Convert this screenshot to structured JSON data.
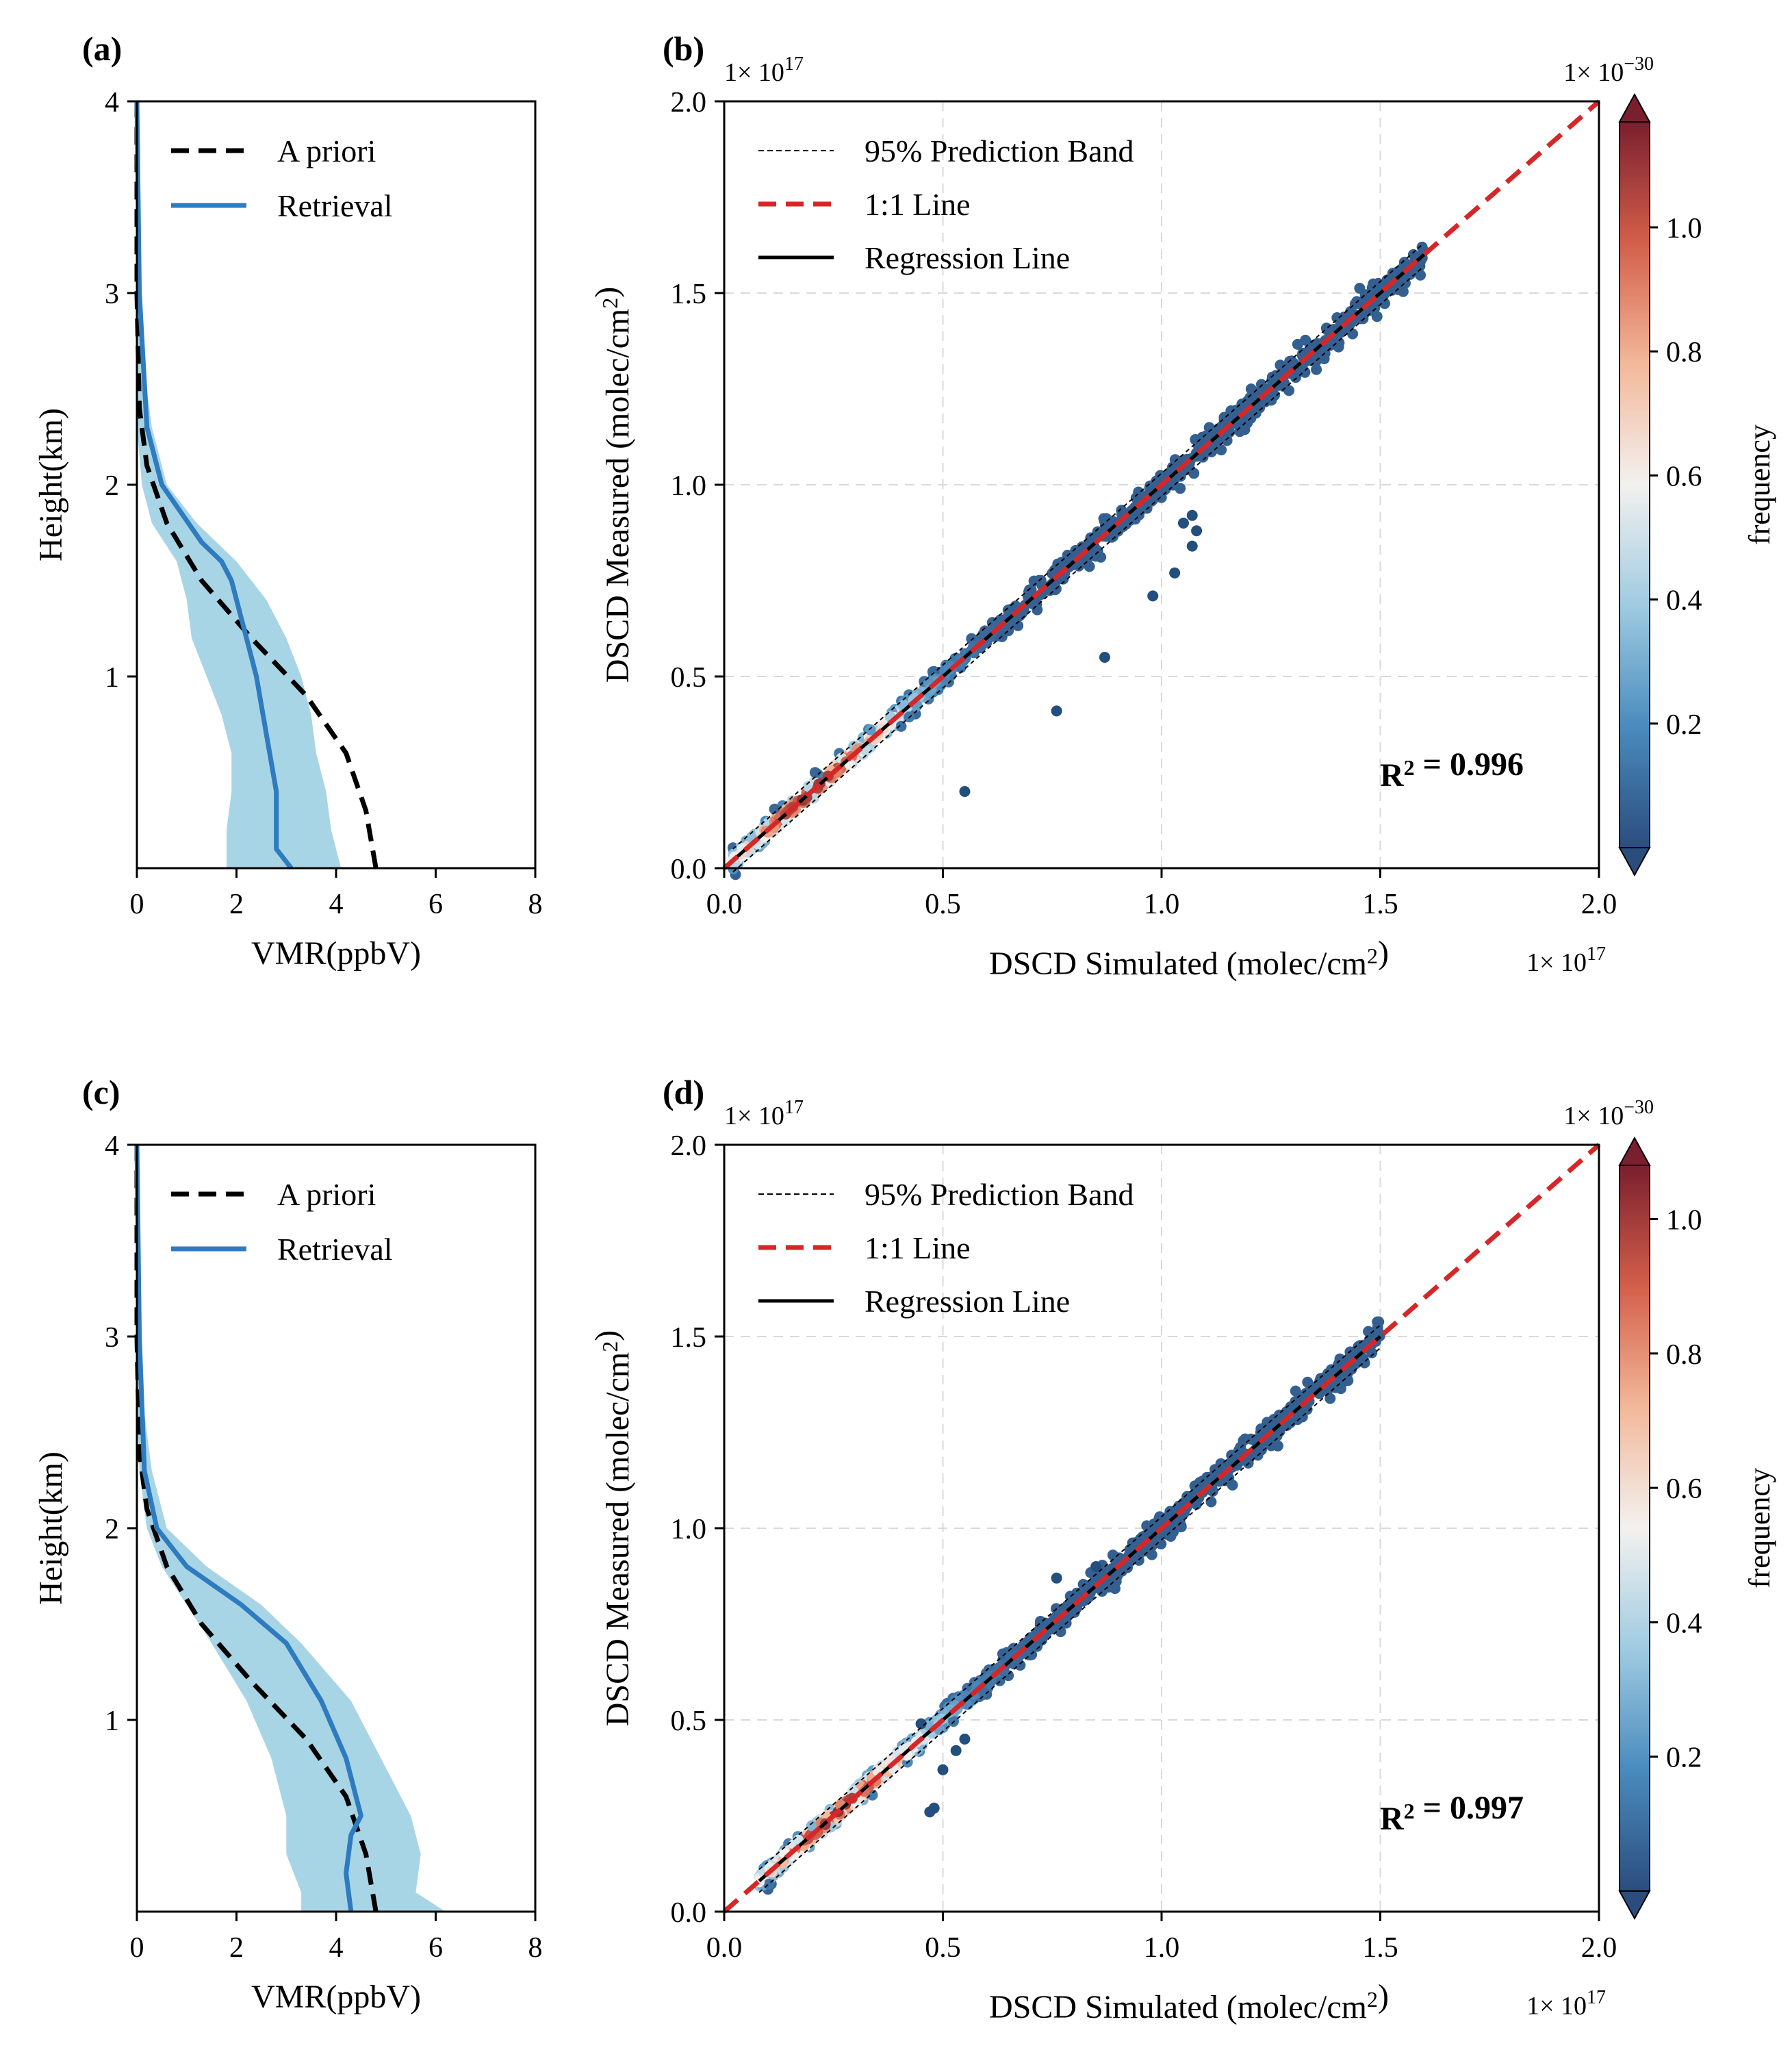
{
  "colors": {
    "apriori": "#000000",
    "retrieval": "#2f7bbf",
    "band_fill": "#a8d5e6",
    "one_to_one": "#d62728",
    "regression": "#000000",
    "scatter": "#234f7e",
    "colormap": [
      "#2b4d7e",
      "#4a8bbd",
      "#9fcbe1",
      "#f3f1ef",
      "#f3b89a",
      "#d35f4a",
      "#7a1f2e"
    ]
  },
  "chart_data": [
    {
      "panel": "(a)",
      "type": "line",
      "xlabel": "VMR(ppbV)",
      "ylabel": "Height(km)",
      "xlim": [
        0,
        8
      ],
      "ylim": [
        0,
        4
      ],
      "xticks": [
        "0",
        "2",
        "4",
        "6",
        "8"
      ],
      "yticks": [
        "1",
        "2",
        "3",
        "4"
      ],
      "legend": [
        "A priori",
        "Retrieval"
      ],
      "series": [
        {
          "name": "A priori",
          "style": "dashed",
          "x": [
            4.8,
            4.6,
            4.2,
            3.4,
            2.3,
            1.3,
            0.6,
            0.2,
            0.05,
            0.0,
            0.0
          ],
          "y": [
            0.0,
            0.3,
            0.6,
            0.9,
            1.2,
            1.5,
            1.8,
            2.1,
            2.4,
            3.0,
            4.0
          ]
        },
        {
          "name": "Retrieval",
          "style": "solid",
          "x": [
            3.1,
            2.8,
            2.8,
            2.6,
            2.4,
            2.1,
            1.9,
            1.7,
            1.3,
            0.5,
            0.2,
            0.05,
            0.0
          ],
          "y": [
            0.0,
            0.1,
            0.4,
            0.7,
            1.0,
            1.3,
            1.5,
            1.6,
            1.7,
            2.0,
            2.3,
            3.0,
            4.0
          ]
        }
      ],
      "band": {
        "y": [
          0.0,
          0.2,
          0.4,
          0.6,
          0.8,
          1.0,
          1.2,
          1.4,
          1.6,
          1.8,
          2.0,
          2.3,
          2.7,
          3.0,
          4.0
        ],
        "lower": [
          1.8,
          1.8,
          1.9,
          1.9,
          1.7,
          1.4,
          1.1,
          1.0,
          0.8,
          0.3,
          0.1,
          0.0,
          0.0,
          0.0,
          0.0
        ],
        "upper": [
          4.1,
          3.9,
          3.8,
          3.6,
          3.5,
          3.3,
          3.0,
          2.6,
          2.0,
          1.2,
          0.6,
          0.3,
          0.1,
          0.05,
          0.02
        ]
      }
    },
    {
      "panel": "(b)",
      "type": "scatter",
      "xlabel": "DSCD Simulated (molec/cm²)",
      "ylabel": "DSCD Measured (molec/cm²)",
      "xlim": [
        0,
        2.0
      ],
      "ylim": [
        0,
        2.0
      ],
      "xticks": [
        "0.0",
        "0.5",
        "1.0",
        "1.5",
        "2.0"
      ],
      "yticks": [
        "0.0",
        "0.5",
        "1.0",
        "1.5",
        "2.0"
      ],
      "x_scale": "1× 10¹⁷",
      "y_scale": "1× 10¹⁷",
      "legend": [
        "95% Prediction Band",
        "1:1 Line",
        "Regression Line"
      ],
      "r2": "R² = 0.996",
      "dense_range": [
        0.02,
        1.6
      ],
      "outliers": [
        [
          0.55,
          0.2
        ],
        [
          0.76,
          0.41
        ],
        [
          0.87,
          0.55
        ],
        [
          0.98,
          0.71
        ],
        [
          1.03,
          0.77
        ],
        [
          1.05,
          0.9
        ],
        [
          1.07,
          0.92
        ],
        [
          1.08,
          0.88
        ],
        [
          1.07,
          0.84
        ]
      ],
      "colorbar": {
        "label": "frequency",
        "scale": "1× 10⁻³⁰",
        "ticks": [
          "0.2",
          "0.4",
          "0.6",
          "0.8",
          "1.0"
        ],
        "range": [
          0,
          1.17
        ]
      }
    },
    {
      "panel": "(c)",
      "type": "line",
      "xlabel": "VMR(ppbV)",
      "ylabel": "Height(km)",
      "xlim": [
        0,
        8
      ],
      "ylim": [
        0,
        4
      ],
      "xticks": [
        "0",
        "2",
        "4",
        "6",
        "8"
      ],
      "yticks": [
        "1",
        "2",
        "3",
        "4"
      ],
      "legend": [
        "A priori",
        "Retrieval"
      ],
      "series": [
        {
          "name": "A priori",
          "style": "dashed",
          "x": [
            4.8,
            4.6,
            4.2,
            3.4,
            2.3,
            1.3,
            0.6,
            0.2,
            0.05,
            0.0,
            0.0
          ],
          "y": [
            0.0,
            0.3,
            0.6,
            0.9,
            1.2,
            1.5,
            1.8,
            2.1,
            2.4,
            3.0,
            4.0
          ]
        },
        {
          "name": "Retrieval",
          "style": "solid",
          "x": [
            4.3,
            4.2,
            4.3,
            4.5,
            4.2,
            3.7,
            3.0,
            2.1,
            1.0,
            0.4,
            0.15,
            0.05,
            0.0
          ],
          "y": [
            0.0,
            0.2,
            0.4,
            0.5,
            0.8,
            1.1,
            1.4,
            1.6,
            1.8,
            2.0,
            2.3,
            3.0,
            4.0
          ]
        }
      ],
      "band": {
        "y": [
          0.0,
          0.1,
          0.3,
          0.5,
          0.8,
          1.1,
          1.4,
          1.6,
          1.8,
          2.0,
          2.3,
          2.7,
          3.0,
          4.0
        ],
        "lower": [
          3.3,
          3.3,
          3.0,
          3.0,
          2.7,
          2.2,
          1.5,
          1.0,
          0.5,
          0.2,
          0.05,
          0.0,
          0.0,
          0.0
        ],
        "upper": [
          6.2,
          5.6,
          5.7,
          5.5,
          4.9,
          4.3,
          3.3,
          2.5,
          1.4,
          0.6,
          0.3,
          0.1,
          0.05,
          0.02
        ]
      }
    },
    {
      "panel": "(d)",
      "type": "scatter",
      "xlabel": "DSCD Simulated (molec/cm²)",
      "ylabel": "DSCD Measured (molec/cm²)",
      "xlim": [
        0,
        2.0
      ],
      "ylim": [
        0,
        2.0
      ],
      "xticks": [
        "0.0",
        "0.5",
        "1.0",
        "1.5",
        "2.0"
      ],
      "yticks": [
        "0.0",
        "0.5",
        "1.0",
        "1.5",
        "2.0"
      ],
      "x_scale": "1× 10¹⁷",
      "y_scale": "1× 10¹⁷",
      "legend": [
        "95% Prediction Band",
        "1:1 Line",
        "Regression Line"
      ],
      "r2": "R² = 0.997",
      "dense_range": [
        0.08,
        1.5
      ],
      "outliers": [
        [
          0.47,
          0.26
        ],
        [
          0.48,
          0.27
        ],
        [
          0.5,
          0.37
        ],
        [
          0.53,
          0.42
        ],
        [
          0.55,
          0.45
        ],
        [
          0.45,
          0.49
        ],
        [
          0.76,
          0.87
        ],
        [
          0.85,
          0.9
        ]
      ],
      "colorbar": {
        "label": "frequency",
        "scale": "1× 10⁻³⁰",
        "ticks": [
          "0.2",
          "0.4",
          "0.6",
          "0.8",
          "1.0"
        ],
        "range": [
          0,
          1.08
        ]
      }
    }
  ]
}
